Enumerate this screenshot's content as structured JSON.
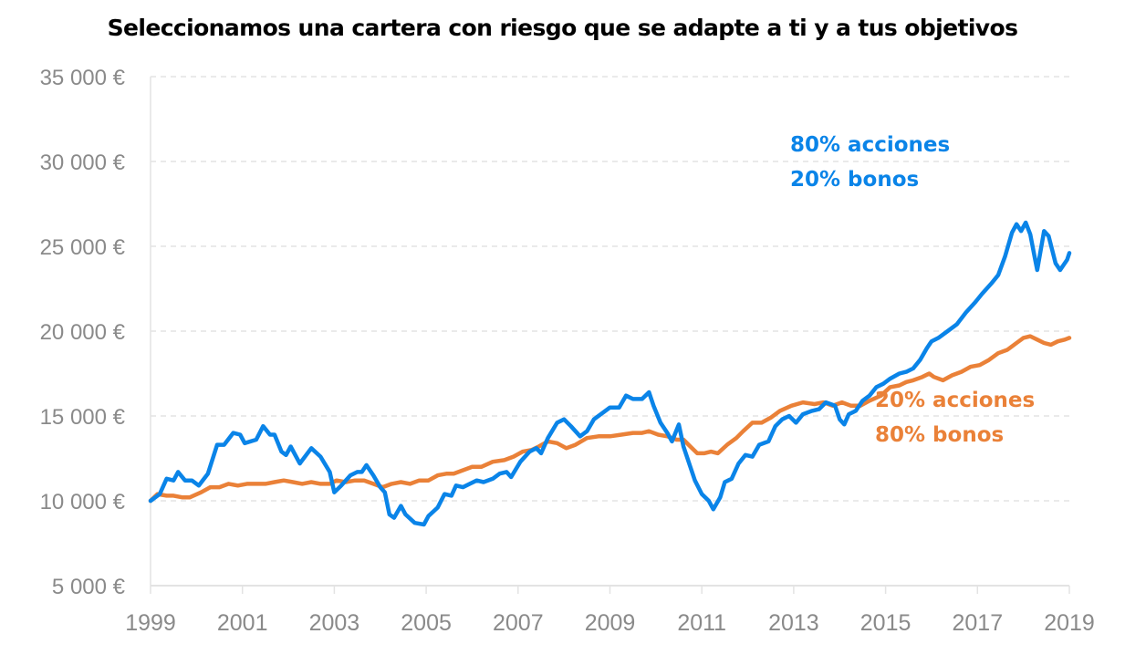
{
  "chart_data": {
    "type": "line",
    "title": "Seleccionamos una cartera con riesgo que se adapte a ti y a tus objetivos",
    "xlabel": "",
    "ylabel": "",
    "xlim": [
      1999,
      2019
    ],
    "ylim": [
      5000,
      35000
    ],
    "x_ticks": [
      "1999",
      "2001",
      "2003",
      "2005",
      "2007",
      "2009",
      "2011",
      "2013",
      "2015",
      "2017",
      "2019"
    ],
    "y_ticks": [
      {
        "value": 5000,
        "label": "5 000 €"
      },
      {
        "value": 10000,
        "label": "10 000 €"
      },
      {
        "value": 15000,
        "label": "15 000 €"
      },
      {
        "value": 20000,
        "label": "20 000 €"
      },
      {
        "value": 25000,
        "label": "25 000 €"
      },
      {
        "value": 30000,
        "label": "30 000 €"
      },
      {
        "value": 35000,
        "label": "35 000 €"
      }
    ],
    "grid": "horizontal dashed",
    "legend": "inline annotations",
    "series": [
      {
        "name": "80% acciones 20% bonos",
        "label_lines": [
          "80% acciones",
          "20% bonos"
        ],
        "color": "#0a84e8",
        "points": [
          [
            1999.0,
            10000
          ],
          [
            1999.2,
            10400
          ],
          [
            1999.35,
            11300
          ],
          [
            1999.5,
            11200
          ],
          [
            1999.6,
            11700
          ],
          [
            1999.75,
            11200
          ],
          [
            1999.9,
            11200
          ],
          [
            2000.05,
            10900
          ],
          [
            2000.25,
            11600
          ],
          [
            2000.45,
            13300
          ],
          [
            2000.6,
            13300
          ],
          [
            2000.8,
            14000
          ],
          [
            2000.95,
            13900
          ],
          [
            2001.05,
            13400
          ],
          [
            2001.3,
            13600
          ],
          [
            2001.45,
            14400
          ],
          [
            2001.6,
            13900
          ],
          [
            2001.7,
            13900
          ],
          [
            2001.85,
            12900
          ],
          [
            2001.95,
            12700
          ],
          [
            2002.05,
            13200
          ],
          [
            2002.25,
            12200
          ],
          [
            2002.5,
            13100
          ],
          [
            2002.7,
            12600
          ],
          [
            2002.9,
            11700
          ],
          [
            2003.0,
            10500
          ],
          [
            2003.15,
            10900
          ],
          [
            2003.35,
            11500
          ],
          [
            2003.5,
            11700
          ],
          [
            2003.6,
            11700
          ],
          [
            2003.7,
            12100
          ],
          [
            2003.85,
            11500
          ],
          [
            2004.0,
            10800
          ],
          [
            2004.1,
            10500
          ],
          [
            2004.2,
            9200
          ],
          [
            2004.3,
            9000
          ],
          [
            2004.45,
            9700
          ],
          [
            2004.55,
            9200
          ],
          [
            2004.75,
            8700
          ],
          [
            2004.95,
            8600
          ],
          [
            2005.05,
            9100
          ],
          [
            2005.25,
            9600
          ],
          [
            2005.4,
            10400
          ],
          [
            2005.55,
            10300
          ],
          [
            2005.65,
            10900
          ],
          [
            2005.8,
            10800
          ],
          [
            2005.95,
            11000
          ],
          [
            2006.1,
            11200
          ],
          [
            2006.25,
            11100
          ],
          [
            2006.45,
            11300
          ],
          [
            2006.6,
            11600
          ],
          [
            2006.75,
            11700
          ],
          [
            2006.85,
            11400
          ],
          [
            2007.05,
            12300
          ],
          [
            2007.25,
            12900
          ],
          [
            2007.4,
            13100
          ],
          [
            2007.5,
            12800
          ],
          [
            2007.65,
            13700
          ],
          [
            2007.85,
            14600
          ],
          [
            2008.0,
            14800
          ],
          [
            2008.15,
            14400
          ],
          [
            2008.35,
            13800
          ],
          [
            2008.5,
            14100
          ],
          [
            2008.65,
            14800
          ],
          [
            2008.85,
            15200
          ],
          [
            2009.0,
            15500
          ],
          [
            2009.2,
            15500
          ],
          [
            2009.35,
            16200
          ],
          [
            2009.5,
            16000
          ],
          [
            2009.7,
            16000
          ],
          [
            2009.85,
            16400
          ],
          [
            2009.95,
            15600
          ],
          [
            2010.1,
            14600
          ],
          [
            2010.25,
            14000
          ],
          [
            2010.35,
            13500
          ],
          [
            2010.5,
            14500
          ],
          [
            2010.6,
            13200
          ],
          [
            2010.75,
            12000
          ],
          [
            2010.85,
            11200
          ],
          [
            2011.0,
            10400
          ],
          [
            2011.15,
            10000
          ],
          [
            2011.25,
            9500
          ],
          [
            2011.4,
            10200
          ],
          [
            2011.5,
            11100
          ],
          [
            2011.65,
            11300
          ],
          [
            2011.8,
            12200
          ],
          [
            2011.95,
            12700
          ],
          [
            2012.1,
            12600
          ],
          [
            2012.25,
            13300
          ],
          [
            2012.45,
            13500
          ],
          [
            2012.6,
            14400
          ],
          [
            2012.75,
            14800
          ],
          [
            2012.9,
            15000
          ],
          [
            2013.05,
            14600
          ],
          [
            2013.2,
            15100
          ],
          [
            2013.4,
            15300
          ],
          [
            2013.55,
            15400
          ],
          [
            2013.7,
            15800
          ],
          [
            2013.9,
            15600
          ],
          [
            2014.0,
            14800
          ],
          [
            2014.1,
            14500
          ],
          [
            2014.2,
            15100
          ],
          [
            2014.35,
            15300
          ],
          [
            2014.5,
            15900
          ],
          [
            2014.65,
            16200
          ],
          [
            2014.8,
            16700
          ],
          [
            2014.95,
            16900
          ],
          [
            2015.1,
            17200
          ],
          [
            2015.3,
            17500
          ],
          [
            2015.45,
            17600
          ],
          [
            2015.6,
            17800
          ],
          [
            2015.75,
            18300
          ],
          [
            2015.9,
            19000
          ],
          [
            2016.0,
            19400
          ],
          [
            2016.15,
            19600
          ],
          [
            2016.35,
            20000
          ],
          [
            2016.55,
            20400
          ],
          [
            2016.75,
            21100
          ],
          [
            2016.95,
            21700
          ],
          [
            2017.1,
            22200
          ],
          [
            2017.3,
            22800
          ],
          [
            2017.45,
            23300
          ],
          [
            2017.6,
            24400
          ],
          [
            2017.75,
            25800
          ],
          [
            2017.85,
            26300
          ],
          [
            2017.95,
            25900
          ],
          [
            2018.05,
            26400
          ],
          [
            2018.15,
            25700
          ],
          [
            2018.25,
            24300
          ],
          [
            2018.3,
            23600
          ],
          [
            2018.45,
            25900
          ],
          [
            2018.55,
            25600
          ],
          [
            2018.7,
            24000
          ],
          [
            2018.8,
            23600
          ],
          [
            2018.95,
            24200
          ],
          [
            2019.0,
            24600
          ]
        ]
      },
      {
        "name": "20% acciones 80% bonos",
        "label_lines": [
          "20% acciones",
          "80% bonos"
        ],
        "color": "#ea8138",
        "points": [
          [
            1999.0,
            10000
          ],
          [
            1999.15,
            10400
          ],
          [
            1999.35,
            10300
          ],
          [
            1999.5,
            10300
          ],
          [
            1999.7,
            10200
          ],
          [
            1999.85,
            10200
          ],
          [
            2000.1,
            10500
          ],
          [
            2000.3,
            10800
          ],
          [
            2000.5,
            10800
          ],
          [
            2000.7,
            11000
          ],
          [
            2000.9,
            10900
          ],
          [
            2001.1,
            11000
          ],
          [
            2001.3,
            11000
          ],
          [
            2001.5,
            11000
          ],
          [
            2001.7,
            11100
          ],
          [
            2001.9,
            11200
          ],
          [
            2002.1,
            11100
          ],
          [
            2002.3,
            11000
          ],
          [
            2002.5,
            11100
          ],
          [
            2002.7,
            11000
          ],
          [
            2002.9,
            11000
          ],
          [
            2003.05,
            11200
          ],
          [
            2003.25,
            11100
          ],
          [
            2003.45,
            11200
          ],
          [
            2003.65,
            11200
          ],
          [
            2003.85,
            11000
          ],
          [
            2004.05,
            10800
          ],
          [
            2004.25,
            11000
          ],
          [
            2004.45,
            11100
          ],
          [
            2004.65,
            11000
          ],
          [
            2004.85,
            11200
          ],
          [
            2005.05,
            11200
          ],
          [
            2005.25,
            11500
          ],
          [
            2005.45,
            11600
          ],
          [
            2005.6,
            11600
          ],
          [
            2005.8,
            11800
          ],
          [
            2006.0,
            12000
          ],
          [
            2006.2,
            12000
          ],
          [
            2006.45,
            12300
          ],
          [
            2006.7,
            12400
          ],
          [
            2006.9,
            12600
          ],
          [
            2007.1,
            12900
          ],
          [
            2007.3,
            13000
          ],
          [
            2007.45,
            13200
          ],
          [
            2007.65,
            13500
          ],
          [
            2007.85,
            13400
          ],
          [
            2008.05,
            13100
          ],
          [
            2008.25,
            13300
          ],
          [
            2008.5,
            13700
          ],
          [
            2008.75,
            13800
          ],
          [
            2009.0,
            13800
          ],
          [
            2009.25,
            13900
          ],
          [
            2009.5,
            14000
          ],
          [
            2009.7,
            14000
          ],
          [
            2009.85,
            14100
          ],
          [
            2010.05,
            13900
          ],
          [
            2010.25,
            13800
          ],
          [
            2010.45,
            13600
          ],
          [
            2010.6,
            13600
          ],
          [
            2010.75,
            13200
          ],
          [
            2010.9,
            12800
          ],
          [
            2011.05,
            12800
          ],
          [
            2011.2,
            12900
          ],
          [
            2011.35,
            12800
          ],
          [
            2011.55,
            13300
          ],
          [
            2011.75,
            13700
          ],
          [
            2011.9,
            14100
          ],
          [
            2012.1,
            14600
          ],
          [
            2012.3,
            14600
          ],
          [
            2012.5,
            14900
          ],
          [
            2012.7,
            15300
          ],
          [
            2012.95,
            15600
          ],
          [
            2013.2,
            15800
          ],
          [
            2013.45,
            15700
          ],
          [
            2013.65,
            15800
          ],
          [
            2013.85,
            15600
          ],
          [
            2014.05,
            15800
          ],
          [
            2014.25,
            15600
          ],
          [
            2014.45,
            15600
          ],
          [
            2014.65,
            15900
          ],
          [
            2014.9,
            16200
          ],
          [
            2015.1,
            16700
          ],
          [
            2015.3,
            16800
          ],
          [
            2015.45,
            17000
          ],
          [
            2015.6,
            17100
          ],
          [
            2015.8,
            17300
          ],
          [
            2015.95,
            17500
          ],
          [
            2016.05,
            17300
          ],
          [
            2016.25,
            17100
          ],
          [
            2016.45,
            17400
          ],
          [
            2016.65,
            17600
          ],
          [
            2016.85,
            17900
          ],
          [
            2017.05,
            18000
          ],
          [
            2017.25,
            18300
          ],
          [
            2017.45,
            18700
          ],
          [
            2017.65,
            18900
          ],
          [
            2017.85,
            19300
          ],
          [
            2018.0,
            19600
          ],
          [
            2018.15,
            19700
          ],
          [
            2018.3,
            19500
          ],
          [
            2018.45,
            19300
          ],
          [
            2018.6,
            19200
          ],
          [
            2018.75,
            19400
          ],
          [
            2018.9,
            19500
          ],
          [
            2019.0,
            19600
          ]
        ]
      }
    ]
  }
}
